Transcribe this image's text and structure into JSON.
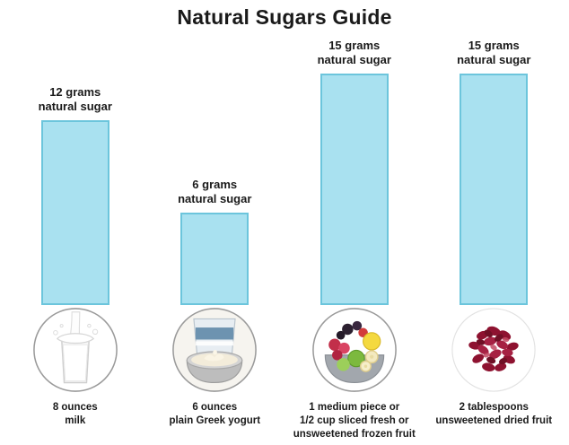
{
  "chart_data": {
    "type": "bar",
    "title": "Natural Sugars Guide",
    "unit": "grams natural sugar",
    "categories": [
      "8 ounces milk",
      "6 ounces plain Greek yogurt",
      "1 medium piece or 1/2 cup sliced fresh or unsweetened frozen fruit",
      "2 tablespoons unsweetened dried fruit"
    ],
    "values": [
      12,
      6,
      15,
      15
    ],
    "ylim": [
      0,
      15
    ],
    "legend": "none",
    "grid": "off",
    "bar_fill": "#a9e1f0",
    "bar_border": "#6cc5dc",
    "items": [
      {
        "value": 12,
        "label": "12 grams\nnatural sugar",
        "caption": "8 ounces\nmilk",
        "icon": "milk-glass-photo"
      },
      {
        "value": 6,
        "label": "6 grams\nnatural sugar",
        "caption": "6 ounces\nplain Greek yogurt",
        "icon": "greek-yogurt-photo"
      },
      {
        "value": 15,
        "label": "15 grams\nnatural sugar",
        "caption": "1 medium piece or\n1/2 cup sliced fresh or\nunsweetened frozen fruit",
        "icon": "fresh-frozen-fruit-photo"
      },
      {
        "value": 15,
        "label": "15 grams\nnatural sugar",
        "caption": "2 tablespoons\nunsweetened dried fruit",
        "icon": "dried-cranberries-photo"
      }
    ]
  }
}
